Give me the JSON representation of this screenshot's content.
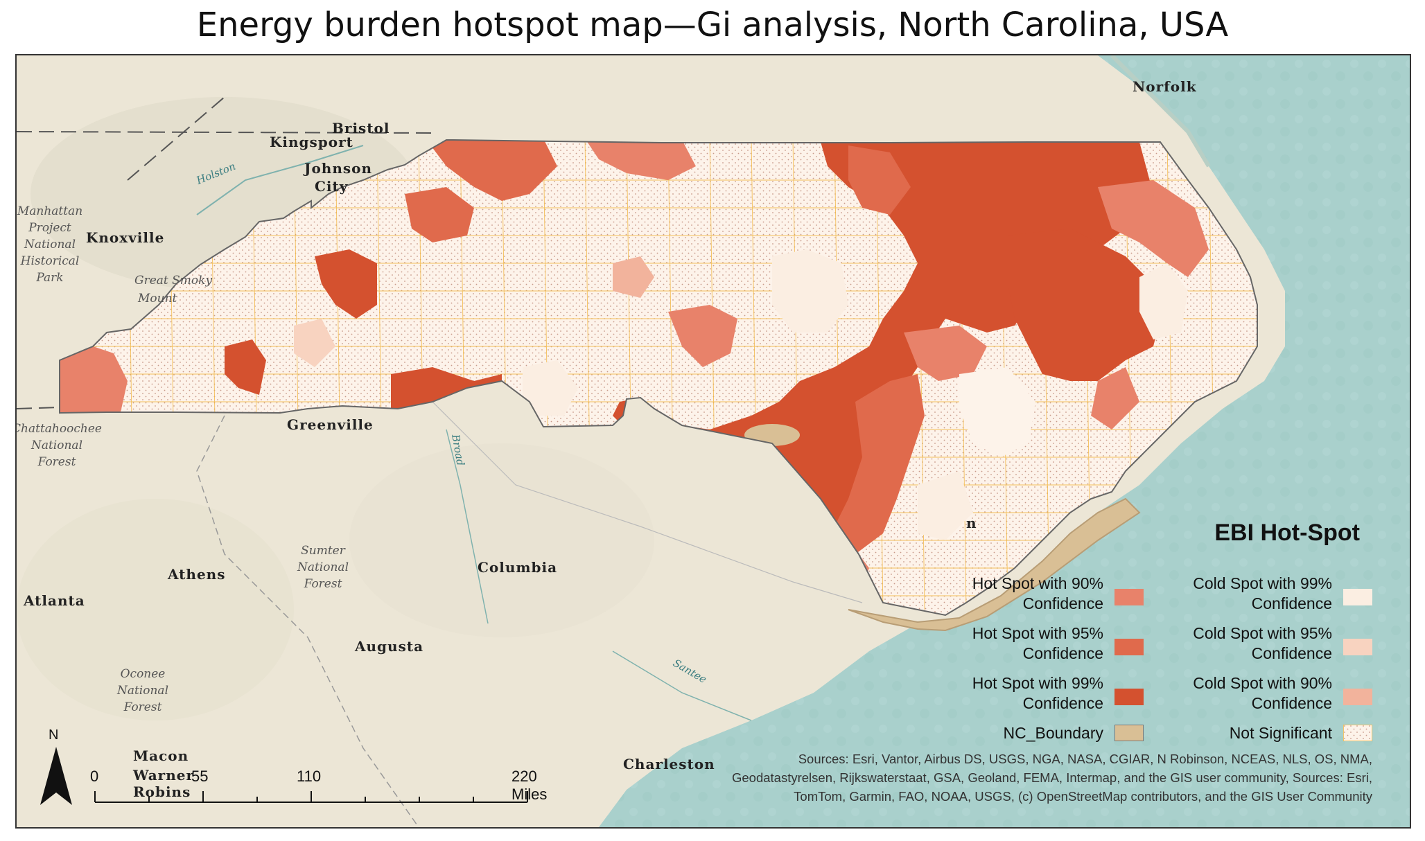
{
  "title": "Energy burden hotspot map—Gi analysis, North Carolina, USA",
  "places": {
    "norfolk": "Norfolk",
    "bristol": "Bristol",
    "kingsport": "Kingsport",
    "johnson": "Johnson",
    "city": "City",
    "knoxville": "Knoxville",
    "greenville": "Greenville",
    "columbia": "Columbia",
    "athens": "Athens",
    "atlanta": "Atlanta",
    "augusta": "Augusta",
    "charleston": "Charleston",
    "macon": "Macon",
    "warner": "Warner",
    "robins": "Robins",
    "wilmington_fragment": "n"
  },
  "parks": {
    "manhattan": [
      "Manhattan",
      "Project",
      "National",
      "Historical",
      "Park"
    ],
    "smoky": [
      "Great Smoky",
      "Mount"
    ],
    "chattahoochee": [
      "Chattahoochee",
      "National",
      "Forest"
    ],
    "sumter": [
      "Sumter",
      "National",
      "Forest"
    ],
    "oconee": [
      "Oconee",
      "National",
      "Forest"
    ]
  },
  "rivers": {
    "holston": "Holston",
    "broad": "Broad",
    "santee": "Santee"
  },
  "legend": {
    "title": "EBI Hot-Spot",
    "items": [
      {
        "line1": "Hot Spot with 90%",
        "line2": "Confidence",
        "color": "#e8826a"
      },
      {
        "line1": "Hot Spot with 95%",
        "line2": "Confidence",
        "color": "#e06a4c"
      },
      {
        "line1": "Hot Spot with 99%",
        "line2": "Confidence",
        "color": "#d4512f"
      },
      {
        "line1": "NC_Boundary",
        "line2": "",
        "color": "#d9bf95"
      },
      {
        "line1": "Cold Spot with 99%",
        "line2": "Confidence",
        "color": "#fbeee2"
      },
      {
        "line1": "Cold Spot with 95%",
        "line2": "Confidence",
        "color": "#f8d3c0"
      },
      {
        "line1": "Cold Spot with 90%",
        "line2": "Confidence",
        "color": "#f2b39c"
      },
      {
        "line1": "Not Significant",
        "line2": "",
        "color": "#fdf3ea"
      }
    ]
  },
  "scale": {
    "labels": [
      "0",
      "55",
      "110",
      "220 Miles"
    ]
  },
  "north": "N",
  "sources": [
    "Sources: Esri, Vantor, Airbus DS, USGS, NGA, NASA, CGIAR, N Robinson, NCEAS, NLS, OS, NMA,",
    "Geodatastyrelsen, Rijkswaterstaat, GSA, Geoland, FEMA, Intermap, and the GIS user community, Sources:  Esri,",
    "TomTom, Garmin, FAO, NOAA, USGS, (c) OpenStreetMap contributors, and the GIS User Community"
  ]
}
